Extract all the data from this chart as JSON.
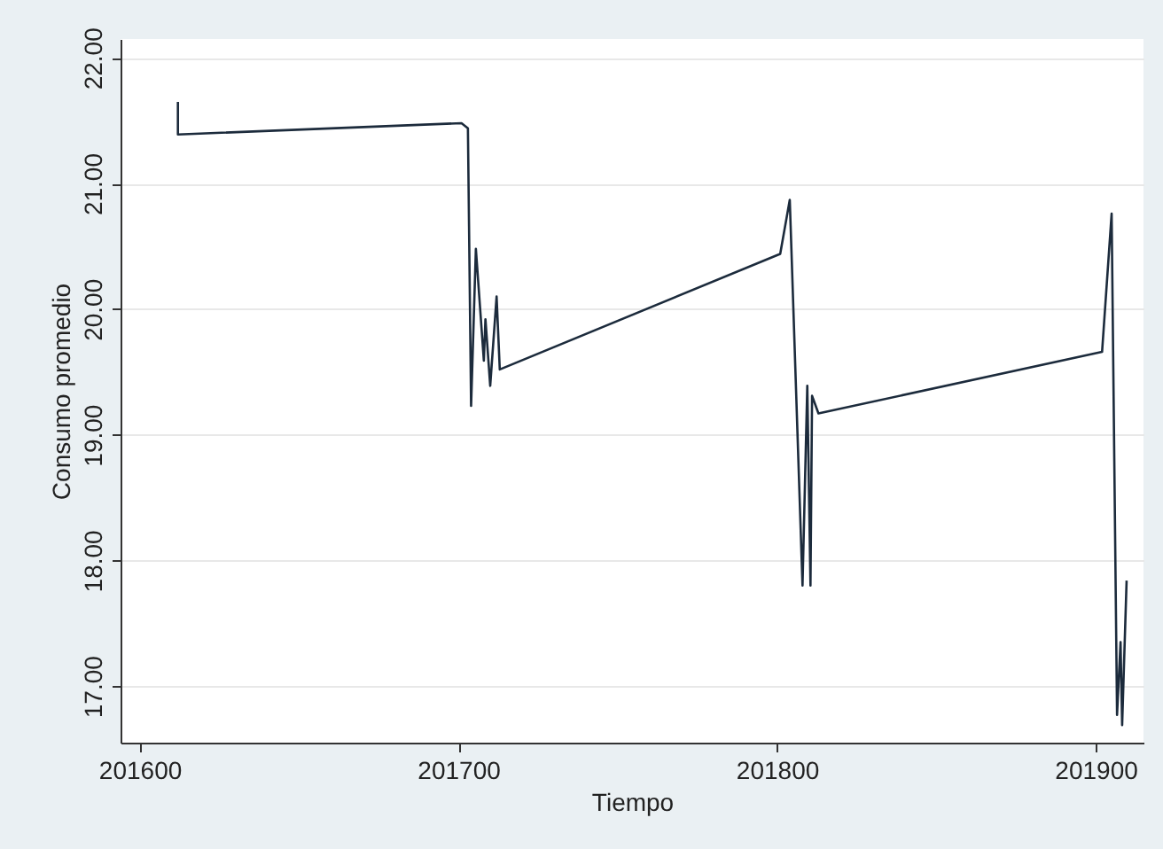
{
  "chart_data": {
    "type": "line",
    "xlabel": "Tiempo",
    "ylabel": "Consumo promedio",
    "x": [
      201612,
      201612,
      201701,
      201703,
      201704,
      201705.5,
      201708,
      201708.5,
      201710,
      201712,
      201713,
      201801,
      201804,
      201808,
      201809.5,
      201810.5,
      201811,
      201813,
      201902,
      201905,
      201906.7,
      201907.8,
      201908.3,
      201909.7
    ],
    "series": [
      {
        "color": "#1c2b3c",
        "values": [
          21.65,
          21.39,
          21.48,
          21.44,
          19.23,
          20.48,
          19.59,
          19.92,
          19.39,
          20.1,
          19.52,
          20.44,
          20.87,
          17.8,
          19.39,
          17.8,
          19.31,
          19.17,
          19.66,
          20.76,
          16.77,
          17.35,
          16.69,
          17.84
        ]
      }
    ],
    "xlim": [
      201594,
      201915
    ],
    "xticks": [
      201600,
      201700,
      201800,
      201900
    ],
    "ylim": [
      16.55,
      22.15
    ],
    "yticks": [
      {
        "value": 17,
        "label": "17.00"
      },
      {
        "value": 18,
        "label": "18.00"
      },
      {
        "value": 19,
        "label": "19.00"
      },
      {
        "value": 20,
        "label": "20.00"
      },
      {
        "value": 21,
        "label": "21.00"
      },
      {
        "value": 22,
        "label": "22.00"
      }
    ],
    "grid": "y",
    "line_style": "solid",
    "marker": "none"
  }
}
